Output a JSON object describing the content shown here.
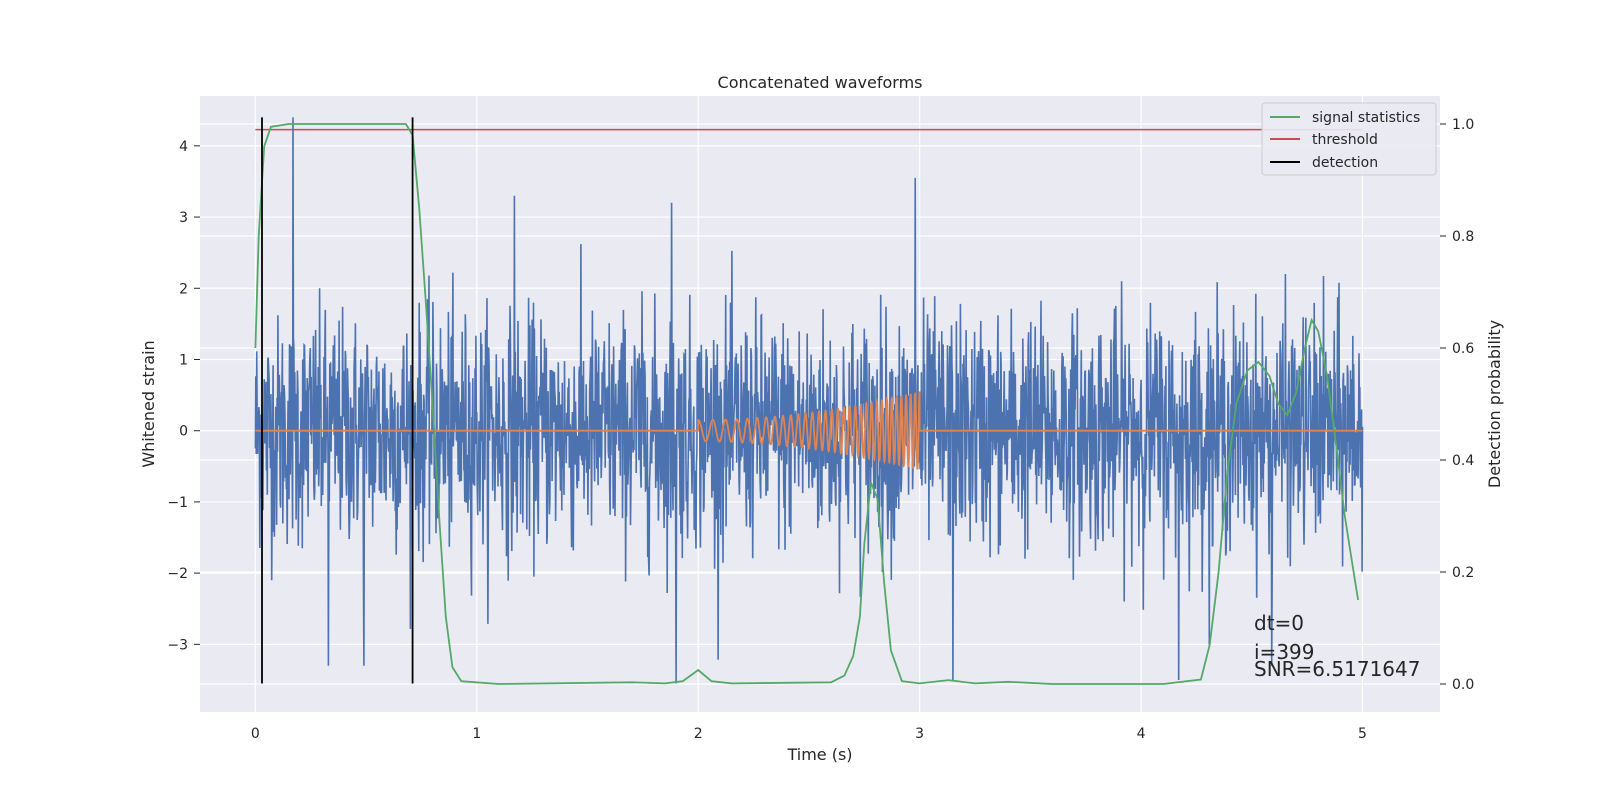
{
  "chart_data": {
    "type": "line",
    "title": "Concatenated waveforms",
    "xlabel": "Time (s)",
    "ylabel": "Whitened strain",
    "ylabel_right": "Detection probability",
    "xlim": [
      -0.25,
      5.35
    ],
    "ylim": [
      -3.95,
      4.7
    ],
    "ylim_right": [
      -0.05,
      1.05
    ],
    "x_ticks": [
      0,
      1,
      2,
      3,
      4,
      5
    ],
    "y_ticks": [
      -3,
      -2,
      -1,
      0,
      1,
      2,
      3,
      4
    ],
    "y_ticks_right": [
      0.0,
      0.2,
      0.4,
      0.6,
      0.8,
      1.0
    ],
    "grid": true,
    "legend_position": "top-right",
    "colors": {
      "strain": "#4c72b0",
      "template": "#dd8452",
      "statistics": "#55a868",
      "threshold": "#c44e52",
      "detection": "#000000",
      "background": "#eaeaf2",
      "grid": "#ffffff"
    },
    "series": [
      {
        "key": "strain",
        "axis": "left",
        "description_sample_spacing": 0.002,
        "x_start": 0,
        "x_end": 5,
        "noise_sigma": 0.8,
        "spikes": [
          [
            0.17,
            4.4
          ],
          [
            0.33,
            -3.3
          ],
          [
            0.49,
            -3.3
          ],
          [
            1.17,
            3.3
          ],
          [
            1.9,
            -3.55
          ],
          [
            1.88,
            3.2
          ],
          [
            2.98,
            3.55
          ],
          [
            3.15,
            -3.5
          ],
          [
            4.17,
            -3.5
          ],
          [
            4.59,
            -3.3
          ]
        ]
      },
      {
        "key": "template",
        "axis": "left",
        "x_start": 0,
        "x_end": 5,
        "chirp_start": 2.0,
        "chirp_end": 3.0,
        "amp_start": 0.15,
        "amp_end": 0.55
      },
      {
        "key": "statistics",
        "name": "signal statistics",
        "axis": "right",
        "points": [
          [
            0,
            0.6
          ],
          [
            0.015,
            0.8
          ],
          [
            0.04,
            0.96
          ],
          [
            0.07,
            0.995
          ],
          [
            0.15,
            1.0
          ],
          [
            0.68,
            1.0
          ],
          [
            0.71,
            0.98
          ],
          [
            0.74,
            0.85
          ],
          [
            0.77,
            0.68
          ],
          [
            0.8,
            0.5
          ],
          [
            0.83,
            0.3
          ],
          [
            0.86,
            0.12
          ],
          [
            0.89,
            0.03
          ],
          [
            0.93,
            0.005
          ],
          [
            1.1,
            0.0
          ],
          [
            1.7,
            0.003
          ],
          [
            1.85,
            0.001
          ],
          [
            1.93,
            0.005
          ],
          [
            2.0,
            0.025
          ],
          [
            2.06,
            0.005
          ],
          [
            2.15,
            0.001
          ],
          [
            2.6,
            0.003
          ],
          [
            2.66,
            0.015
          ],
          [
            2.7,
            0.05
          ],
          [
            2.73,
            0.12
          ],
          [
            2.75,
            0.25
          ],
          [
            2.78,
            0.36
          ],
          [
            2.81,
            0.33
          ],
          [
            2.84,
            0.18
          ],
          [
            2.87,
            0.06
          ],
          [
            2.92,
            0.005
          ],
          [
            3.0,
            0.001
          ],
          [
            3.13,
            0.007
          ],
          [
            3.25,
            0.001
          ],
          [
            3.4,
            0.004
          ],
          [
            3.6,
            0.0
          ],
          [
            4.1,
            0.0
          ],
          [
            4.27,
            0.008
          ],
          [
            4.31,
            0.07
          ],
          [
            4.35,
            0.2
          ],
          [
            4.39,
            0.38
          ],
          [
            4.43,
            0.5
          ],
          [
            4.48,
            0.56
          ],
          [
            4.53,
            0.575
          ],
          [
            4.58,
            0.55
          ],
          [
            4.62,
            0.5
          ],
          [
            4.66,
            0.48
          ],
          [
            4.7,
            0.52
          ],
          [
            4.74,
            0.6
          ],
          [
            4.77,
            0.65
          ],
          [
            4.8,
            0.63
          ],
          [
            4.84,
            0.55
          ],
          [
            4.88,
            0.43
          ],
          [
            4.92,
            0.3
          ],
          [
            4.96,
            0.2
          ],
          [
            4.98,
            0.15
          ]
        ]
      },
      {
        "key": "threshold",
        "name": "threshold",
        "axis": "right",
        "points": [
          [
            0,
            0.99
          ],
          [
            5,
            0.99
          ]
        ]
      },
      {
        "key": "detection",
        "name": "detection",
        "axis": "left",
        "vlines": [
          0.03,
          0.71
        ],
        "y_range": [
          -3.55,
          4.4
        ]
      }
    ],
    "legend": [
      "signal statistics",
      "threshold",
      "detection"
    ],
    "annotations": [
      "dt=0",
      "i=399",
      "SNR=6.5171647"
    ]
  }
}
